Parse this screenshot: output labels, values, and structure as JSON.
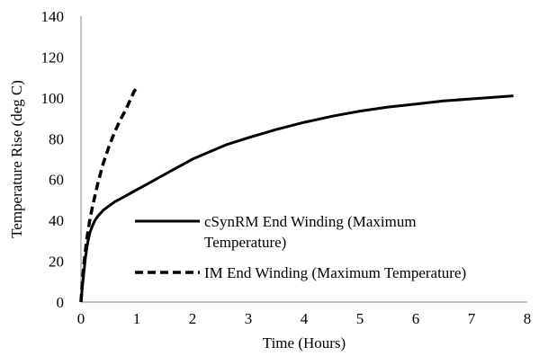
{
  "chart_data": {
    "type": "line",
    "xlabel": "Time (Hours)",
    "ylabel": "Temperature Rise (deg C)",
    "xlim": [
      0,
      8
    ],
    "ylim": [
      0,
      140
    ],
    "xticks": [
      0,
      1,
      2,
      3,
      4,
      5,
      6,
      7,
      8
    ],
    "yticks": [
      0,
      20,
      40,
      60,
      80,
      100,
      120,
      140
    ],
    "grid": false,
    "legend_position": "bottom-right",
    "series": [
      {
        "name": "cSynRM End Winding (Maximum Temperature)",
        "legend_lines": [
          "cSynRM End Winding (Maximum",
          "Temperature)"
        ],
        "style": "solid",
        "color": "#000000",
        "x": [
          0,
          0.02,
          0.05,
          0.08,
          0.12,
          0.16,
          0.2,
          0.25,
          0.3,
          0.35,
          0.4,
          0.5,
          0.6,
          0.7,
          0.8,
          0.9,
          1.0,
          1.2,
          1.4,
          1.6,
          1.8,
          2.0,
          2.3,
          2.6,
          3.0,
          3.5,
          4.0,
          4.5,
          5.0,
          5.5,
          6.0,
          6.5,
          7.0,
          7.5,
          7.75
        ],
        "y": [
          0,
          6,
          14,
          22,
          29,
          34,
          37,
          40,
          42,
          43.5,
          45,
          47,
          49,
          50.5,
          52,
          53.5,
          55,
          58,
          61,
          64,
          67,
          70,
          73.5,
          77,
          80.5,
          84.5,
          88,
          91,
          93.5,
          95.5,
          97,
          98.5,
          99.5,
          100.5,
          101
        ]
      },
      {
        "name": "IM End Winding (Maximum Temperature)",
        "legend_lines": [
          "IM End Winding (Maximum Temperature)"
        ],
        "style": "dashed",
        "color": "#000000",
        "x": [
          0,
          0.02,
          0.05,
          0.1,
          0.15,
          0.2,
          0.3,
          0.4,
          0.5,
          0.6,
          0.7,
          0.8,
          0.9,
          0.95,
          1.0
        ],
        "y": [
          0,
          8,
          18,
          30,
          39,
          46,
          58,
          68,
          76,
          83,
          89,
          94,
          100,
          103,
          105
        ]
      }
    ]
  }
}
